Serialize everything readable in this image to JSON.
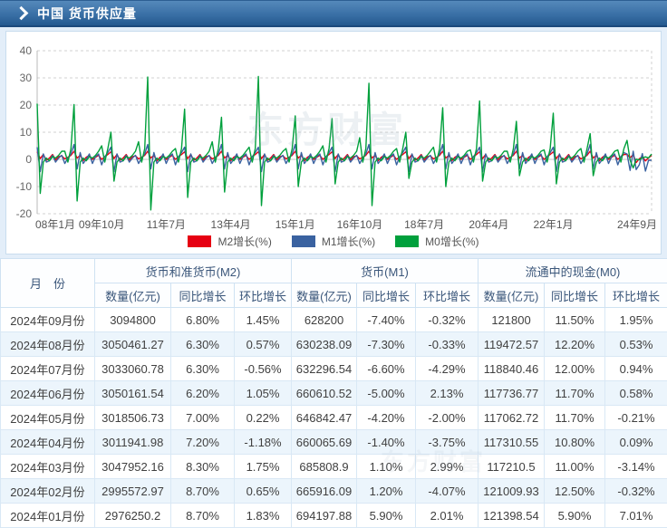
{
  "header": {
    "title": "中国 货币供应量"
  },
  "watermark": "东方财富",
  "colors": {
    "m2_red": "#e60012",
    "m1_blue": "#3a62a0",
    "m0_green": "#00a03c",
    "up_red": "#fe0000",
    "down_green": "#009900"
  },
  "chart_data": {
    "type": "line",
    "title": "",
    "xlabel": "",
    "ylabel": "",
    "ylim": [
      -20,
      40
    ],
    "y_ticks": [
      40,
      30,
      20,
      10,
      0,
      -10,
      -20
    ],
    "x_ticks": [
      "08年1月",
      "09年10月",
      "11年7月",
      "13年4月",
      "15年1月",
      "16年10月",
      "18年7月",
      "20年4月",
      "22年1月",
      "24年9月"
    ],
    "x_tick_months": [
      0,
      21,
      42,
      63,
      84,
      105,
      126,
      147,
      168,
      200
    ],
    "grid": "dashed",
    "legend_position": "bottom",
    "series": [
      {
        "name": "M2增长(%)",
        "color": "#e60012",
        "values": [
          2.8,
          0.3,
          1.8,
          -0.3,
          0.5,
          1.8,
          -0.2,
          1.0,
          1.3,
          0.2,
          0.8,
          1.5,
          3.0,
          0.5,
          1.5,
          -0.5,
          0.8,
          1.5,
          0.0,
          0.8,
          1.5,
          0.0,
          1.0,
          1.8,
          2.8,
          0.3,
          1.8,
          -0.3,
          0.5,
          1.8,
          -0.2,
          1.0,
          1.3,
          0.2,
          0.8,
          1.5,
          3.0,
          0.5,
          1.5,
          -0.5,
          0.8,
          1.5,
          0.0,
          0.8,
          1.5,
          0.0,
          1.0,
          1.8,
          2.8,
          0.3,
          1.8,
          -0.3,
          0.5,
          1.8,
          -0.2,
          1.0,
          1.3,
          0.2,
          0.8,
          1.5,
          3.0,
          0.5,
          1.5,
          -0.5,
          0.8,
          1.5,
          0.0,
          0.8,
          1.5,
          0.0,
          1.0,
          1.8,
          2.8,
          0.3,
          1.8,
          -0.3,
          0.5,
          1.8,
          -0.2,
          1.0,
          1.3,
          0.2,
          0.8,
          1.5,
          3.0,
          0.5,
          1.5,
          -0.5,
          0.8,
          1.5,
          0.0,
          0.8,
          1.5,
          0.0,
          1.0,
          1.8,
          2.8,
          0.3,
          1.8,
          -0.3,
          0.5,
          1.8,
          -0.2,
          1.0,
          1.3,
          0.2,
          0.8,
          1.5,
          3.0,
          0.5,
          1.5,
          -0.5,
          0.8,
          1.5,
          0.0,
          0.8,
          1.5,
          0.0,
          1.0,
          1.8,
          2.8,
          0.3,
          1.8,
          -0.3,
          0.5,
          1.8,
          -0.2,
          1.0,
          1.3,
          0.2,
          0.8,
          1.5,
          3.0,
          0.5,
          1.5,
          -0.5,
          0.8,
          1.5,
          0.0,
          0.8,
          1.5,
          0.0,
          1.0,
          1.8,
          2.8,
          0.3,
          1.8,
          -0.3,
          0.5,
          1.8,
          -0.2,
          1.0,
          1.3,
          0.2,
          0.8,
          1.5,
          3.0,
          0.5,
          1.5,
          -0.5,
          0.8,
          1.5,
          0.0,
          0.8,
          1.5,
          0.0,
          1.0,
          1.8,
          2.8,
          0.3,
          1.8,
          -0.3,
          0.5,
          1.8,
          -0.2,
          1.0,
          1.3,
          0.2,
          0.8,
          1.5,
          3.0,
          0.5,
          1.5,
          -0.5,
          0.8,
          1.5,
          0.0,
          0.8,
          1.5,
          0.0,
          1.0,
          1.8,
          1.83,
          0.65,
          1.75,
          -1.18,
          0.22,
          1.05,
          -0.56,
          0.57,
          1.45
        ]
      },
      {
        "name": "M1增长(%)",
        "color": "#3a62a0",
        "values": [
          4.5,
          -4.5,
          2.0,
          -1.0,
          -0.5,
          1.5,
          -1.0,
          0.5,
          1.5,
          -1.5,
          0.5,
          2.0,
          5.5,
          -3.5,
          2.5,
          -1.5,
          0.0,
          2.0,
          -1.5,
          1.0,
          2.0,
          -2.0,
          1.0,
          2.5,
          4.5,
          -4.5,
          2.0,
          -1.0,
          -0.5,
          1.5,
          -1.0,
          0.5,
          1.5,
          -1.5,
          0.5,
          2.0,
          5.5,
          -3.5,
          2.5,
          -1.5,
          0.0,
          2.0,
          -1.5,
          1.0,
          2.0,
          -2.0,
          1.0,
          2.5,
          4.5,
          -4.5,
          2.0,
          -1.0,
          -0.5,
          1.5,
          -1.0,
          0.5,
          1.5,
          -1.5,
          0.5,
          2.0,
          5.5,
          -3.5,
          2.5,
          -1.5,
          0.0,
          2.0,
          -1.5,
          1.0,
          2.0,
          -2.0,
          1.0,
          2.5,
          4.5,
          -4.5,
          2.0,
          -1.0,
          -0.5,
          1.5,
          -1.0,
          0.5,
          1.5,
          -1.5,
          0.5,
          2.0,
          5.5,
          -3.5,
          2.5,
          -1.5,
          0.0,
          2.0,
          -1.5,
          1.0,
          2.0,
          -2.0,
          1.0,
          2.5,
          4.5,
          -4.5,
          2.0,
          -1.0,
          -0.5,
          1.5,
          -1.0,
          0.5,
          1.5,
          -1.5,
          0.5,
          2.0,
          5.5,
          -3.5,
          2.5,
          -1.5,
          0.0,
          2.0,
          -1.5,
          1.0,
          2.0,
          -2.0,
          1.0,
          2.5,
          4.5,
          -4.5,
          2.0,
          -1.0,
          -0.5,
          1.5,
          -1.0,
          0.5,
          1.5,
          -1.5,
          0.5,
          2.0,
          5.5,
          -3.5,
          2.5,
          -1.5,
          0.0,
          2.0,
          -1.5,
          1.0,
          2.0,
          -2.0,
          1.0,
          2.5,
          4.5,
          -4.5,
          2.0,
          -1.0,
          -0.5,
          1.5,
          -1.0,
          0.5,
          1.5,
          -1.5,
          0.5,
          2.0,
          5.5,
          -3.5,
          2.5,
          -1.5,
          0.0,
          2.0,
          -1.5,
          1.0,
          2.0,
          -2.0,
          1.0,
          2.5,
          4.5,
          -4.5,
          2.0,
          -1.0,
          -0.5,
          1.5,
          -1.0,
          0.5,
          1.5,
          -1.5,
          0.5,
          2.0,
          5.5,
          -3.5,
          2.5,
          -1.5,
          0.0,
          2.0,
          -1.5,
          1.0,
          2.0,
          -2.0,
          1.0,
          2.5,
          2.01,
          -4.07,
          2.99,
          -3.75,
          -2.0,
          2.13,
          -4.29,
          -0.33,
          -0.32
        ]
      },
      {
        "name": "M0增长(%)",
        "color": "#00a03c",
        "values": [
          20.5,
          -12.5,
          -1.0,
          0.5,
          -0.5,
          1.0,
          0.5,
          1.5,
          3.0,
          3.0,
          -1.0,
          4.0,
          20.2,
          -15.3,
          -1.0,
          0.5,
          -0.5,
          1.0,
          0.5,
          1.5,
          3.0,
          5.0,
          -1.0,
          4.0,
          10.0,
          -8.0,
          -1.0,
          0.5,
          -0.5,
          1.0,
          0.5,
          1.5,
          3.0,
          6.5,
          -1.0,
          4.0,
          30.3,
          -18.6,
          -1.0,
          0.5,
          -0.5,
          1.0,
          0.5,
          1.5,
          3.0,
          4.0,
          -1.0,
          4.0,
          18.5,
          -14.0,
          -1.0,
          0.5,
          -0.5,
          1.0,
          0.5,
          1.5,
          3.0,
          6.5,
          -1.0,
          4.0,
          15.5,
          -12.0,
          -1.0,
          0.5,
          -0.5,
          1.0,
          0.5,
          1.5,
          3.0,
          4.5,
          -1.0,
          4.0,
          30.5,
          -17.0,
          -1.0,
          0.5,
          -0.5,
          1.0,
          0.5,
          1.5,
          3.0,
          4.0,
          -1.0,
          4.0,
          16.0,
          -10.0,
          -1.0,
          0.5,
          -0.5,
          1.0,
          0.5,
          1.5,
          3.0,
          5.0,
          -1.0,
          4.0,
          15.0,
          -9.0,
          -1.0,
          0.5,
          -0.5,
          1.0,
          0.5,
          1.5,
          3.0,
          8.0,
          -1.0,
          4.0,
          28.0,
          -17.0,
          -1.0,
          0.5,
          -0.5,
          1.0,
          0.5,
          1.5,
          3.0,
          4.0,
          -1.0,
          4.0,
          10.0,
          -7.0,
          -1.0,
          0.5,
          -0.5,
          1.0,
          0.5,
          1.5,
          3.0,
          4.5,
          -1.0,
          4.0,
          19.0,
          -10.0,
          -1.0,
          0.5,
          -0.5,
          1.0,
          0.5,
          1.5,
          3.0,
          3.5,
          -1.0,
          4.0,
          21.5,
          -8.0,
          -1.0,
          0.5,
          -0.5,
          1.0,
          0.5,
          1.5,
          3.0,
          3.0,
          -1.0,
          4.0,
          14.0,
          -6.0,
          -1.0,
          0.5,
          -0.5,
          1.0,
          0.5,
          1.5,
          3.0,
          3.5,
          -1.0,
          4.0,
          17.0,
          -9.0,
          -1.0,
          0.5,
          -0.5,
          1.0,
          0.5,
          1.5,
          3.0,
          4.0,
          -1.0,
          4.0,
          9.5,
          -6.0,
          -1.0,
          0.5,
          -0.5,
          1.0,
          0.5,
          1.5,
          3.0,
          3.5,
          -1.0,
          4.0,
          7.01,
          -0.32,
          -3.14,
          0.09,
          -0.21,
          0.58,
          0.94,
          0.53,
          1.95
        ]
      }
    ]
  },
  "table": {
    "month_header": "月　份",
    "groups": [
      {
        "label": "货币和准货币(M2)"
      },
      {
        "label": "货币(M1)"
      },
      {
        "label": "流通中的现金(M0)"
      }
    ],
    "sub_headers": [
      "数量(亿元)",
      "同比增长",
      "环比增长"
    ],
    "rows": [
      [
        "2024年09月份",
        "3094800",
        "6.80%",
        "1.45%",
        "628200",
        "-7.40%",
        "-0.32%",
        "121800",
        "11.50%",
        "1.95%"
      ],
      [
        "2024年08月份",
        "3050461.27",
        "6.30%",
        "0.57%",
        "630238.09",
        "-7.30%",
        "-0.33%",
        "119472.57",
        "12.20%",
        "0.53%"
      ],
      [
        "2024年07月份",
        "3033060.78",
        "6.30%",
        "-0.56%",
        "632296.54",
        "-6.60%",
        "-4.29%",
        "118840.46",
        "12.00%",
        "0.94%"
      ],
      [
        "2024年06月份",
        "3050161.54",
        "6.20%",
        "1.05%",
        "660610.52",
        "-5.00%",
        "2.13%",
        "117736.77",
        "11.70%",
        "0.58%"
      ],
      [
        "2024年05月份",
        "3018506.73",
        "7.00%",
        "0.22%",
        "646842.47",
        "-4.20%",
        "-2.00%",
        "117062.72",
        "11.70%",
        "-0.21%"
      ],
      [
        "2024年04月份",
        "3011941.98",
        "7.20%",
        "-1.18%",
        "660065.69",
        "-1.40%",
        "-3.75%",
        "117310.55",
        "10.80%",
        "0.09%"
      ],
      [
        "2024年03月份",
        "3047952.16",
        "8.30%",
        "1.75%",
        "685808.9",
        "1.10%",
        "2.99%",
        "117210.5",
        "11.00%",
        "-3.14%"
      ],
      [
        "2024年02月份",
        "2995572.97",
        "8.70%",
        "0.65%",
        "665916.09",
        "1.20%",
        "-4.07%",
        "121009.93",
        "12.50%",
        "-0.32%"
      ],
      [
        "2024年01月份",
        "2976250.2",
        "8.70%",
        "1.83%",
        "694197.88",
        "5.90%",
        "2.01%",
        "121398.54",
        "5.90%",
        "7.01%"
      ]
    ]
  }
}
